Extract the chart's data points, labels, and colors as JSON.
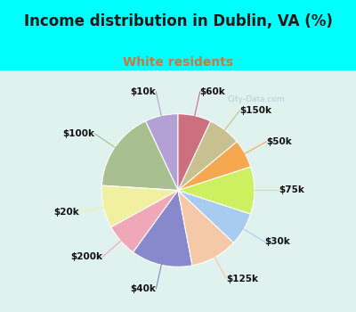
{
  "title": "Income distribution in Dublin, VA (%)",
  "subtitle": "White residents",
  "title_color": "#1a1a1a",
  "subtitle_color": "#cc7744",
  "background_top": "#00ffff",
  "background_box": "#e0f2ee",
  "watermark": "City-Data.com",
  "labels": [
    "$10k",
    "$100k",
    "$20k",
    "$200k",
    "$40k",
    "$125k",
    "$30k",
    "$75k",
    "$50k",
    "$150k",
    "$60k"
  ],
  "values": [
    7,
    17,
    9,
    7,
    13,
    10,
    7,
    10,
    6,
    7,
    7
  ],
  "colors": [
    "#b3a0d4",
    "#a8bf8f",
    "#f0f0a0",
    "#f0a8b8",
    "#8888cc",
    "#f5c8a8",
    "#a8ccf0",
    "#ccf060",
    "#f5a850",
    "#c8c090",
    "#cc7080"
  ],
  "startangle": 90,
  "label_fontsize": 7.5,
  "title_fontsize": 12,
  "subtitle_fontsize": 10
}
